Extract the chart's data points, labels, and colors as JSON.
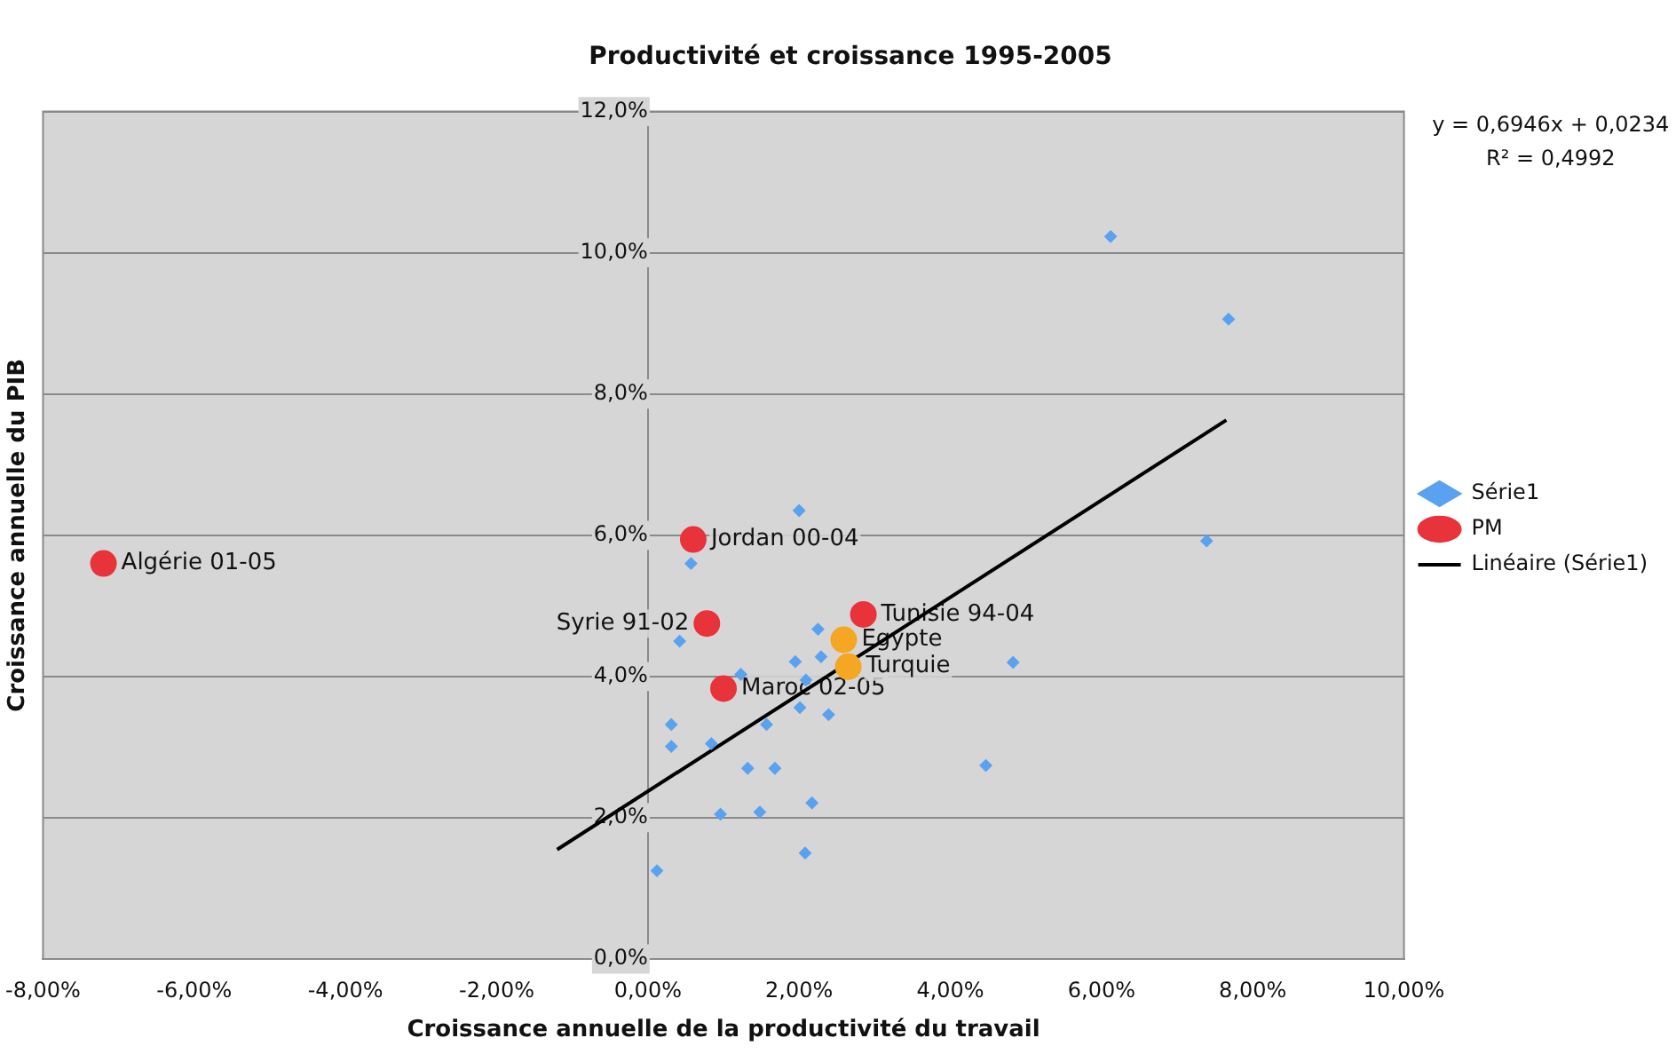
{
  "chart_data": {
    "type": "scatter",
    "title": "Productivité et croissance 1995-2005",
    "xlabel": "Croissance annuelle de la productivité du travail",
    "ylabel": "Croissance annuelle du PIB",
    "xlim": [
      -8,
      10
    ],
    "xticks": [
      {
        "value": -8,
        "label": "-8,00%"
      },
      {
        "value": -6,
        "label": "-6,00%"
      },
      {
        "value": -4,
        "label": "-4,00%"
      },
      {
        "value": -2,
        "label": "-2,00%"
      },
      {
        "value": 0,
        "label": "0,00%"
      },
      {
        "value": 2,
        "label": "2,00%"
      },
      {
        "value": 4,
        "label": "4,00%"
      },
      {
        "value": 6,
        "label": "6,00%"
      },
      {
        "value": 8,
        "label": "8,00%"
      },
      {
        "value": 10,
        "label": "10,00%"
      }
    ],
    "ylim": [
      0,
      12
    ],
    "yticks": [
      {
        "value": 0,
        "label": "0,0%"
      },
      {
        "value": 2,
        "label": "2,0%"
      },
      {
        "value": 4,
        "label": "4,0%"
      },
      {
        "value": 6,
        "label": "6,0%"
      },
      {
        "value": 8,
        "label": "8,0%"
      },
      {
        "value": 10,
        "label": "10,0%"
      },
      {
        "value": 12,
        "label": "12,0%"
      }
    ],
    "grid": "y",
    "legend": "right",
    "annotations": [
      "y = 0,6946x + 0,0234",
      "R² = 0,4992"
    ],
    "series": [
      {
        "name": "Série1",
        "type": "scatter",
        "marker": "diamond",
        "color": "#5aa2f0",
        "x": [
          2.0,
          0.57,
          0.42,
          2.25,
          1.95,
          2.29,
          1.23,
          2.09,
          2.01,
          2.39,
          1.57,
          0.31,
          0.31,
          0.84,
          1.32,
          1.68,
          2.17,
          0.96,
          1.48,
          2.08,
          0.12,
          4.83,
          4.47,
          6.12,
          7.68,
          7.39
        ],
        "values": [
          6.35,
          5.6,
          4.5,
          4.67,
          4.21,
          4.28,
          4.03,
          3.95,
          3.56,
          3.46,
          3.32,
          3.32,
          3.01,
          3.05,
          2.7,
          2.7,
          2.21,
          2.05,
          2.08,
          1.5,
          1.25,
          4.2,
          2.74,
          10.23,
          9.06,
          5.92
        ]
      },
      {
        "name": "PM",
        "type": "scatter",
        "marker": "circle",
        "color": "#e8333a",
        "colors": [
          "#e8333a",
          "#e8333a",
          "#e8333a",
          "#e8333a",
          "#e8333a",
          "#f5a623",
          "#f5a623"
        ],
        "x": [
          -7.2,
          0.6,
          0.78,
          2.85,
          1.0,
          2.59,
          2.65
        ],
        "values": [
          5.6,
          5.94,
          4.75,
          4.88,
          3.83,
          4.52,
          4.14
        ],
        "value_labels": [
          "Algérie 01-05",
          "Jordan 00-04",
          "Syrie 91-02",
          "Tunisie 94-04",
          "Maroc 02-05",
          "Egypte",
          "Turquie"
        ]
      },
      {
        "name": "Linéaire (Série1)",
        "type": "line",
        "marker": "none",
        "color": "#000000",
        "x": [
          -1.2,
          7.65
        ],
        "values": [
          1.55,
          7.63
        ]
      }
    ]
  }
}
